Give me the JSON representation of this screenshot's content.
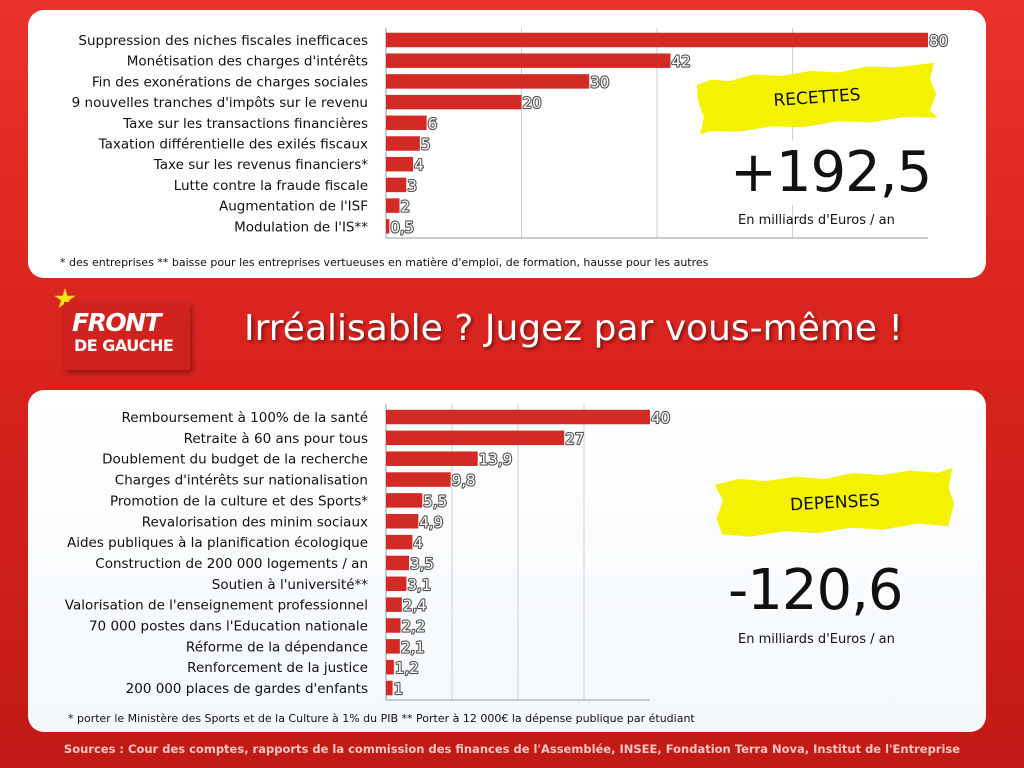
{
  "title": "Irréalisable ? Jugez par vous-même !",
  "logo": {
    "line1": "FRONT",
    "line2": "DE GAUCHE"
  },
  "sources": "Sources : Cour des comptes, rapports de la commission des finances de l'Assemblée, INSEE, Fondation Terra Nova, Institut de l'Entreprise",
  "recettes": {
    "label": "RECETTES",
    "total": "+192,5",
    "unit": "En milliards d'Euros / an",
    "footnote": "* des entreprises ** baisse pour les entreprises vertueuses en matière d'emploi, de formation, hausse pour les autres"
  },
  "depenses": {
    "label": "DEPENSES",
    "total": "-120,6",
    "unit": "En milliards d'Euros / an",
    "footnote": "* porter le Ministère des Sports et de la Culture à 1% du PIB ** Porter à 12 000€ la dépense publique par étudiant"
  },
  "colors": {
    "bar": "#d42a26",
    "background": "#d9231e",
    "sticker": "#f5f200"
  },
  "chart_data": [
    {
      "type": "bar",
      "orientation": "horizontal",
      "categories": [
        "Suppression des niches fiscales inefficaces",
        "Monétisation des charges d'intérêts",
        "Fin des exonérations de charges sociales",
        "9 nouvelles tranches d'impôts sur le revenu",
        "Taxe sur les transactions financières",
        "Taxation différentielle des exilés fiscaux",
        "Taxe sur les revenus financiers*",
        "Lutte contre la fraude fiscale",
        "Augmentation de l'ISF",
        "Modulation de l'IS**"
      ],
      "values": [
        80,
        42,
        30,
        20,
        6,
        5,
        4,
        3,
        2,
        0.5
      ],
      "value_labels": [
        "80",
        "42",
        "30",
        "20",
        "6",
        "5",
        "4",
        "3",
        "2",
        "0,5"
      ],
      "xlim": [
        0,
        80
      ],
      "grid": true
    },
    {
      "type": "bar",
      "orientation": "horizontal",
      "categories": [
        "Remboursement à 100% de la santé",
        "Retraite à 60 ans pour tous",
        "Doublement du budget de la recherche",
        "Charges d'intérêts sur nationalisation",
        "Promotion de la culture et des Sports*",
        "Revalorisation des minim sociaux",
        "Aides publiques à la planification écologique",
        "Construction de 200 000 logements / an",
        "Soutien à l'université**",
        "Valorisation de l'enseignement professionnel",
        "70 000 postes dans l'Education nationale",
        "Réforme de la dépendance",
        "Renforcement de la justice",
        "200 000 places de gardes d'enfants"
      ],
      "values": [
        40,
        27,
        13.9,
        9.8,
        5.5,
        4.9,
        4,
        3.5,
        3.1,
        2.4,
        2.2,
        2.1,
        1.2,
        1
      ],
      "value_labels": [
        "40",
        "27",
        "13,9",
        "9,8",
        "5,5",
        "4,9",
        "4",
        "3,5",
        "3,1",
        "2,4",
        "2,2",
        "2,1",
        "1,2",
        "1"
      ],
      "xlim": [
        0,
        40
      ],
      "grid": true
    }
  ]
}
